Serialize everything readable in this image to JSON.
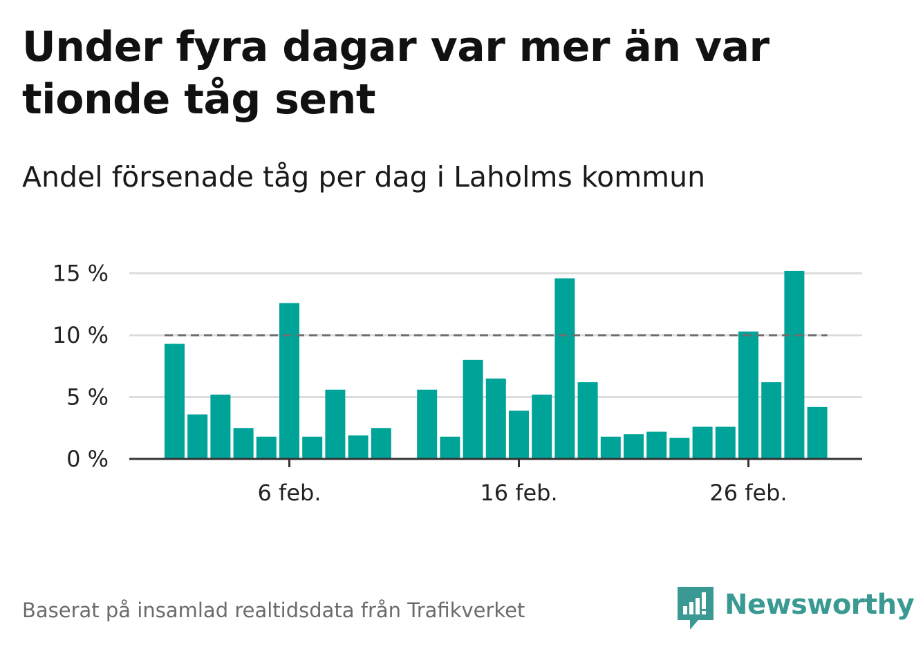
{
  "title": "Under fyra dagar var mer än var tionde tåg sent",
  "subtitle": "Andel försenade tåg per dag i Laholms kommun",
  "footer": "Baserat på insamlad realtidsdata från Trafikverket",
  "brand": {
    "name": "Newsworthy",
    "color": "#3a9a93",
    "icon": "newsworthy-logo-icon"
  },
  "colors": {
    "bar": "#00a398",
    "threshold": "#6e6e6e",
    "grid": "#dcdcdc",
    "axis": "#333333"
  },
  "chart_data": {
    "type": "bar",
    "unit": "%",
    "x_tick_labels": [
      "6 feb.",
      "16 feb.",
      "26 feb."
    ],
    "y_tick_labels": [
      "0 %",
      "5 %",
      "10 %",
      "15 %"
    ],
    "y_ticks": [
      0,
      5,
      10,
      15
    ],
    "ylim": [
      0,
      15.5
    ],
    "threshold": 10,
    "grid": true,
    "categories": [
      "1 feb",
      "2 feb",
      "3 feb",
      "4 feb",
      "5 feb",
      "6 feb",
      "7 feb",
      "8 feb",
      "9 feb",
      "10 feb",
      "11 feb",
      "12 feb",
      "13 feb",
      "14 feb",
      "15 feb",
      "16 feb",
      "17 feb",
      "18 feb",
      "19 feb",
      "20 feb",
      "21 feb",
      "22 feb",
      "23 feb",
      "24 feb",
      "25 feb",
      "26 feb",
      "27 feb",
      "28 feb",
      "29 feb"
    ],
    "values": [
      9.3,
      3.6,
      5.2,
      2.5,
      1.8,
      12.6,
      1.8,
      5.6,
      1.9,
      2.5,
      null,
      5.6,
      1.8,
      8.0,
      6.5,
      3.9,
      5.2,
      14.6,
      6.2,
      1.8,
      2.0,
      2.2,
      1.7,
      2.6,
      2.6,
      10.3,
      6.2,
      15.2,
      4.2
    ]
  }
}
